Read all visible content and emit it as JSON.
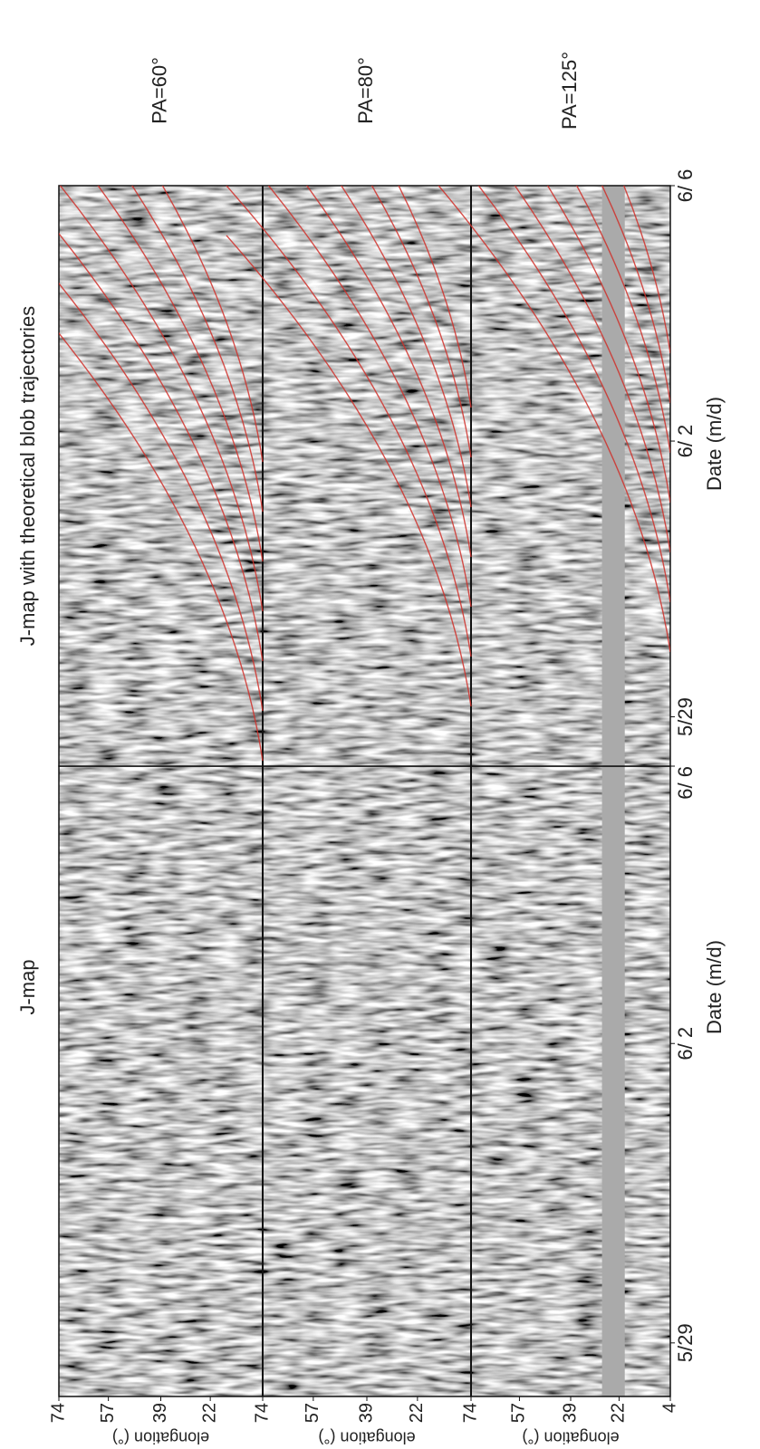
{
  "chart_data": [
    {
      "type": "heatmap",
      "title": "J-map",
      "xlabel": "Date (m/d)",
      "xticks": [
        "5/29",
        "6/ 2",
        "6/ 6"
      ]
    },
    {
      "type": "heatmap",
      "title": "J-map with theoretical blob trajectories",
      "xlabel": "Date (m/d)",
      "xticks": [
        "5/29",
        "6/ 2",
        "6/ 6"
      ]
    }
  ],
  "rows": [
    {
      "label": "PA=60°",
      "ylabel": "elongation (°)",
      "ylim": [
        4,
        74
      ],
      "yticks": [
        22,
        39,
        57,
        74
      ]
    },
    {
      "label": "PA=80°",
      "ylabel": "elongation (°)",
      "ylim": [
        4,
        74
      ],
      "yticks": [
        22,
        39,
        57,
        74
      ]
    },
    {
      "label": "PA=125°",
      "ylabel": "elongation (°)",
      "ylim": [
        4,
        74
      ],
      "yticks": [
        4,
        22,
        39,
        57,
        74
      ]
    }
  ]
}
